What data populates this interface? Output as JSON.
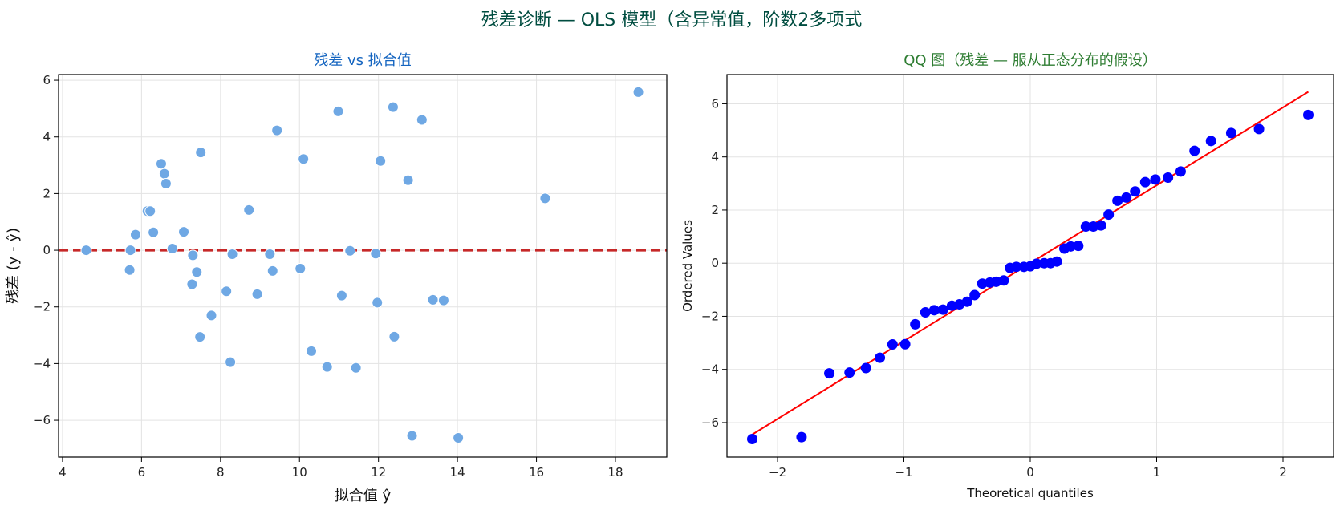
{
  "figure": {
    "suptitle": "残差诊断 — OLS 模型（含异常值，阶数2多项式",
    "suptitle_color": "#004d40"
  },
  "chart_data": [
    {
      "type": "scatter",
      "title": "残差 vs 拟合值",
      "title_color": "#1565c0",
      "xlabel": "拟合值 ŷ",
      "ylabel": "残差 (y - ŷ)",
      "xlim": [
        3.9,
        19.3
      ],
      "ylim": [
        -7.3,
        6.2
      ],
      "xticks": [
        4,
        6,
        8,
        10,
        12,
        14,
        16,
        18
      ],
      "yticks": [
        -6,
        -4,
        -2,
        0,
        2,
        4,
        6
      ],
      "grid": true,
      "point_color": "#6fa8e4",
      "reference_line": {
        "y": 0,
        "style": "dashed",
        "color": "#c62828"
      },
      "points": [
        [
          4.6,
          0.0
        ],
        [
          5.7,
          -0.7
        ],
        [
          5.72,
          0.0
        ],
        [
          5.85,
          0.55
        ],
        [
          6.15,
          1.38
        ],
        [
          6.22,
          1.38
        ],
        [
          6.3,
          0.63
        ],
        [
          6.5,
          3.05
        ],
        [
          6.58,
          2.7
        ],
        [
          6.62,
          2.35
        ],
        [
          6.78,
          0.06
        ],
        [
          7.07,
          0.65
        ],
        [
          7.28,
          -1.2
        ],
        [
          7.3,
          -0.18
        ],
        [
          7.4,
          -0.77
        ],
        [
          7.48,
          -3.06
        ],
        [
          7.5,
          3.45
        ],
        [
          7.77,
          -2.3
        ],
        [
          8.15,
          -1.45
        ],
        [
          8.25,
          -3.95
        ],
        [
          8.3,
          -0.14
        ],
        [
          8.72,
          1.42
        ],
        [
          8.93,
          -1.55
        ],
        [
          9.25,
          -0.14
        ],
        [
          9.32,
          -0.73
        ],
        [
          9.43,
          4.23
        ],
        [
          10.02,
          -0.65
        ],
        [
          10.1,
          3.22
        ],
        [
          10.3,
          -3.56
        ],
        [
          10.7,
          -4.12
        ],
        [
          10.98,
          4.9
        ],
        [
          11.07,
          -1.6
        ],
        [
          11.28,
          -0.02
        ],
        [
          11.43,
          -4.15
        ],
        [
          11.93,
          -0.12
        ],
        [
          11.97,
          -1.85
        ],
        [
          12.05,
          3.15
        ],
        [
          12.37,
          5.05
        ],
        [
          12.4,
          -3.05
        ],
        [
          12.75,
          2.47
        ],
        [
          12.85,
          -6.55
        ],
        [
          13.1,
          4.6
        ],
        [
          13.38,
          -1.75
        ],
        [
          13.65,
          -1.77
        ],
        [
          14.02,
          -6.62
        ],
        [
          16.22,
          1.83
        ],
        [
          18.58,
          5.58
        ]
      ]
    },
    {
      "type": "scatter",
      "title": "QQ 图（残差 — 服从正态分布的假设）",
      "title_color": "#2e7d32",
      "xlabel": "Theoretical quantiles",
      "ylabel": "Ordered Values",
      "xlim": [
        -2.4,
        2.4
      ],
      "ylim": [
        -7.3,
        7.1
      ],
      "xticks": [
        -2,
        -1,
        0,
        1,
        2
      ],
      "yticks": [
        -6,
        -4,
        -2,
        0,
        2,
        4,
        6
      ],
      "grid": true,
      "point_color": "#0000ff",
      "fit_line": {
        "from": [
          -2.2,
          -6.45
        ],
        "to": [
          2.2,
          6.45
        ],
        "color": "#ff0000"
      },
      "points": [
        [
          -2.2,
          -6.62
        ],
        [
          -1.81,
          -6.55
        ],
        [
          -1.59,
          -4.15
        ],
        [
          -1.43,
          -4.12
        ],
        [
          -1.3,
          -3.95
        ],
        [
          -1.19,
          -3.56
        ],
        [
          -1.09,
          -3.06
        ],
        [
          -0.99,
          -3.05
        ],
        [
          -0.91,
          -2.3
        ],
        [
          -0.83,
          -1.85
        ],
        [
          -0.76,
          -1.77
        ],
        [
          -0.69,
          -1.75
        ],
        [
          -0.62,
          -1.6
        ],
        [
          -0.56,
          -1.55
        ],
        [
          -0.5,
          -1.45
        ],
        [
          -0.44,
          -1.2
        ],
        [
          -0.38,
          -0.77
        ],
        [
          -0.32,
          -0.73
        ],
        [
          -0.27,
          -0.7
        ],
        [
          -0.21,
          -0.65
        ],
        [
          -0.16,
          -0.18
        ],
        [
          -0.11,
          -0.14
        ],
        [
          -0.05,
          -0.14
        ],
        [
          0.0,
          -0.12
        ],
        [
          0.05,
          -0.02
        ],
        [
          0.11,
          0.0
        ],
        [
          0.16,
          0.0
        ],
        [
          0.21,
          0.06
        ],
        [
          0.27,
          0.55
        ],
        [
          0.32,
          0.63
        ],
        [
          0.38,
          0.65
        ],
        [
          0.44,
          1.38
        ],
        [
          0.5,
          1.38
        ],
        [
          0.56,
          1.42
        ],
        [
          0.62,
          1.83
        ],
        [
          0.69,
          2.35
        ],
        [
          0.76,
          2.47
        ],
        [
          0.83,
          2.7
        ],
        [
          0.91,
          3.05
        ],
        [
          0.99,
          3.15
        ],
        [
          1.09,
          3.22
        ],
        [
          1.19,
          3.45
        ],
        [
          1.3,
          4.23
        ],
        [
          1.43,
          4.6
        ],
        [
          1.59,
          4.9
        ],
        [
          1.81,
          5.05
        ],
        [
          2.2,
          5.58
        ]
      ]
    }
  ]
}
